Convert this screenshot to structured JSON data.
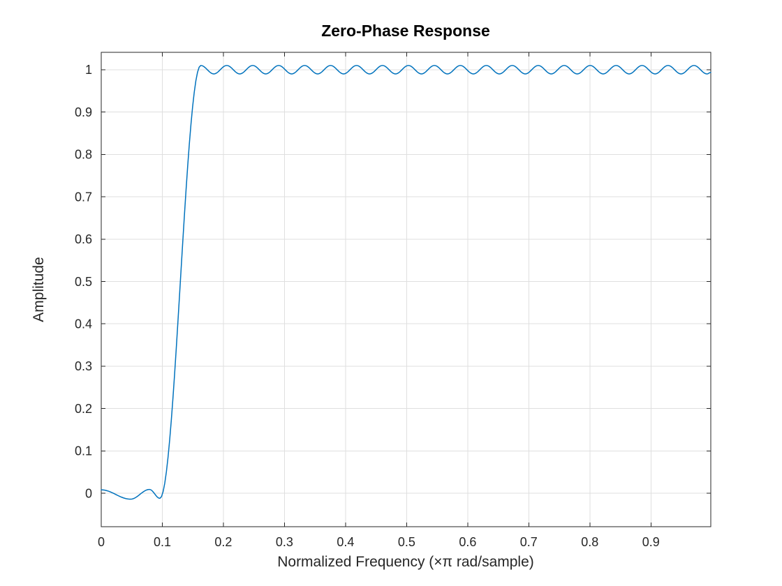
{
  "chart_data": {
    "type": "line",
    "title": "Zero-Phase Response",
    "xlabel": "Normalized Frequency  (×π rad/sample)",
    "ylabel": "Amplitude",
    "xlim": [
      0,
      0.998
    ],
    "ylim": [
      -0.079,
      1.041
    ],
    "xticks": [
      0,
      0.1,
      0.2,
      0.3,
      0.4,
      0.5,
      0.6,
      0.7,
      0.8,
      0.9
    ],
    "xtick_labels": [
      "0",
      "0.1",
      "0.2",
      "0.3",
      "0.4",
      "0.5",
      "0.6",
      "0.7",
      "0.8",
      "0.9"
    ],
    "yticks": [
      0,
      0.1,
      0.2,
      0.3,
      0.4,
      0.5,
      0.6,
      0.7,
      0.8,
      0.9,
      1
    ],
    "ytick_labels": [
      "0",
      "0.1",
      "0.2",
      "0.3",
      "0.4",
      "0.5",
      "0.6",
      "0.7",
      "0.8",
      "0.9",
      "1"
    ],
    "grid": true,
    "legend": "none",
    "line_color": "#0072BD",
    "grid_color": "#dfdfdf",
    "axis_color": "#262626",
    "series": [
      {
        "name": "zero-phase-response",
        "description": "Equiripple highpass FIR zero-phase response: stopband 0 to 0.096 (ripple about 0, amplitude ~0.012), transition band 0.096 to 0.163, passband 0.163 to 0.998 (equiripple about 1, amplitude ~0.01, ripple period ~0.0425). Points listed are the curve extrema (x in units of pi rad/sample, y amplitude); curve oscillates smoothly between consecutive extrema.",
        "extrema": [
          [
            0.0,
            0.008
          ],
          [
            0.048,
            -0.014
          ],
          [
            0.079,
            0.009
          ],
          [
            0.096,
            -0.012
          ],
          [
            0.163,
            1.01
          ],
          [
            0.1843,
            0.99
          ],
          [
            0.2055,
            1.01
          ],
          [
            0.2268,
            0.99
          ],
          [
            0.248,
            1.01
          ],
          [
            0.2693,
            0.99
          ],
          [
            0.2905,
            1.01
          ],
          [
            0.3118,
            0.99
          ],
          [
            0.333,
            1.01
          ],
          [
            0.3543,
            0.99
          ],
          [
            0.3755,
            1.01
          ],
          [
            0.3968,
            0.99
          ],
          [
            0.418,
            1.01
          ],
          [
            0.4393,
            0.99
          ],
          [
            0.4605,
            1.01
          ],
          [
            0.4818,
            0.99
          ],
          [
            0.503,
            1.01
          ],
          [
            0.5243,
            0.99
          ],
          [
            0.5455,
            1.01
          ],
          [
            0.5668,
            0.99
          ],
          [
            0.588,
            1.01
          ],
          [
            0.6093,
            0.99
          ],
          [
            0.6305,
            1.01
          ],
          [
            0.6518,
            0.99
          ],
          [
            0.673,
            1.01
          ],
          [
            0.6943,
            0.99
          ],
          [
            0.7155,
            1.01
          ],
          [
            0.7368,
            0.99
          ],
          [
            0.758,
            1.01
          ],
          [
            0.7793,
            0.99
          ],
          [
            0.8005,
            1.01
          ],
          [
            0.8218,
            0.99
          ],
          [
            0.843,
            1.01
          ],
          [
            0.8643,
            0.99
          ],
          [
            0.8855,
            1.01
          ],
          [
            0.9068,
            0.99
          ],
          [
            0.928,
            1.01
          ],
          [
            0.9493,
            0.99
          ],
          [
            0.9705,
            1.01
          ],
          [
            0.9918,
            0.99
          ],
          [
            0.998,
            0.9935
          ]
        ]
      }
    ]
  }
}
